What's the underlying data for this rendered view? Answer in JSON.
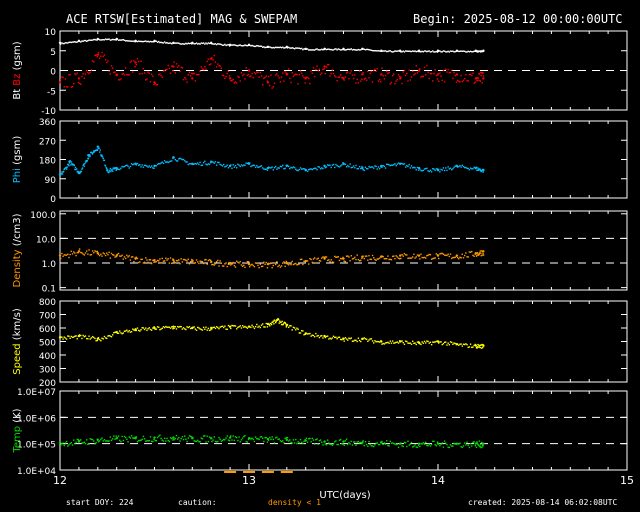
{
  "header": {
    "title": "ACE RTSW[Estimated] MAG & SWEPAM",
    "begin_label": "Begin: 2025-08-12 00:00:00UTC"
  },
  "footer": {
    "start_doy": "start DOY: 224",
    "caution_label": "caution:",
    "density_caution": "density < 1",
    "created": "created: 2025-08-14 06:02:08UTC"
  },
  "colors": {
    "background": "#000000",
    "axes": "#ffffff",
    "bt": "#ffffff",
    "bz": "#ff0000",
    "phi": "#00c0ff",
    "density": "#ff9900",
    "speed": "#ffff00",
    "temp": "#00dd00"
  },
  "chart_data": {
    "type": "scatter",
    "xlabel": "UTC(days)",
    "xlim": [
      12,
      15
    ],
    "xticks": [
      "12",
      "13",
      "14",
      "15"
    ],
    "panels": [
      {
        "id": "mag",
        "ylabel_parts": [
          "Bt",
          "Bz",
          "(gsm)"
        ],
        "ylim": [
          -10,
          10
        ],
        "yticks": [
          -10,
          -5,
          0,
          5,
          10
        ],
        "dashed_lines": [
          0
        ],
        "series": [
          {
            "name": "Bt",
            "x": [
              12.0,
              12.1,
              12.2,
              12.3,
              12.4,
              12.5,
              12.6,
              12.7,
              12.8,
              12.9,
              13.0,
              13.1,
              13.2,
              13.3,
              13.4,
              13.5,
              13.6,
              13.7,
              13.8,
              13.9,
              14.0,
              14.1,
              14.2,
              14.24
            ],
            "y": [
              7.0,
              7.5,
              8.0,
              8.0,
              7.5,
              7.5,
              7.0,
              7.0,
              7.0,
              6.5,
              6.5,
              6.0,
              6.0,
              5.5,
              5.5,
              5.5,
              5.5,
              5.0,
              5.0,
              5.0,
              5.0,
              5.0,
              5.0,
              5.0
            ]
          },
          {
            "name": "Bz",
            "x": [
              12.0,
              12.1,
              12.2,
              12.3,
              12.4,
              12.5,
              12.6,
              12.7,
              12.8,
              12.9,
              13.0,
              13.1,
              13.2,
              13.3,
              13.4,
              13.5,
              13.6,
              13.7,
              13.8,
              13.9,
              14.0,
              14.1,
              14.2,
              14.24
            ],
            "y": [
              -3,
              -2,
              4,
              -1,
              2,
              -3,
              1,
              -2,
              3,
              -2,
              0,
              -3,
              -1,
              -2,
              1,
              -2,
              -1,
              -1,
              -2,
              0,
              -1,
              -1,
              -2,
              -2
            ]
          }
        ]
      },
      {
        "id": "phi",
        "ylabel_parts": [
          "Phi",
          "(gsm)"
        ],
        "ylim": [
          0,
          360
        ],
        "yticks": [
          0,
          90,
          180,
          270,
          360
        ],
        "dashed_lines": [],
        "series": [
          {
            "name": "Phi",
            "x": [
              12.0,
              12.05,
              12.1,
              12.15,
              12.2,
              12.25,
              12.3,
              12.4,
              12.5,
              12.6,
              12.7,
              12.8,
              12.9,
              13.0,
              13.1,
              13.2,
              13.3,
              13.4,
              13.5,
              13.6,
              13.7,
              13.8,
              13.9,
              14.0,
              14.1,
              14.2,
              14.24
            ],
            "y": [
              110,
              170,
              120,
              200,
              240,
              130,
              140,
              160,
              150,
              190,
              160,
              170,
              150,
              160,
              140,
              150,
              130,
              150,
              160,
              140,
              150,
              160,
              140,
              130,
              150,
              140,
              130
            ]
          }
        ]
      },
      {
        "id": "density",
        "ylabel_parts": [
          "Density",
          "(/cm3)"
        ],
        "scale": "log",
        "ylim": [
          0.08,
          130
        ],
        "yticks": [
          0.1,
          1.0,
          10.0,
          100.0
        ],
        "ytick_labels": [
          "0.1",
          "1.0",
          "10.0",
          "100.0"
        ],
        "dashed_lines": [
          1,
          10
        ],
        "series": [
          {
            "name": "Density",
            "x": [
              12.0,
              12.1,
              12.2,
              12.3,
              12.4,
              12.5,
              12.6,
              12.7,
              12.8,
              12.9,
              13.0,
              13.1,
              13.2,
              13.3,
              13.4,
              13.5,
              13.6,
              13.7,
              13.8,
              13.9,
              14.0,
              14.1,
              14.2,
              14.24
            ],
            "y": [
              2.0,
              3.0,
              2.5,
              2.0,
              1.5,
              1.3,
              1.3,
              1.2,
              1.1,
              1.0,
              0.9,
              0.9,
              1.0,
              1.2,
              1.5,
              1.5,
              1.8,
              1.8,
              2.0,
              2.0,
              2.0,
              2.0,
              2.5,
              3.0
            ]
          }
        ]
      },
      {
        "id": "speed",
        "ylabel_parts": [
          "Speed",
          "(km/s)"
        ],
        "ylim": [
          200,
          800
        ],
        "yticks": [
          200,
          300,
          400,
          500,
          600,
          700,
          800
        ],
        "dashed_lines": [],
        "series": [
          {
            "name": "Speed",
            "x": [
              12.0,
              12.1,
              12.2,
              12.3,
              12.4,
              12.5,
              12.6,
              12.7,
              12.8,
              12.9,
              13.0,
              13.1,
              13.15,
              13.2,
              13.3,
              13.4,
              13.5,
              13.6,
              13.7,
              13.8,
              13.9,
              14.0,
              14.1,
              14.2,
              14.24
            ],
            "y": [
              530,
              540,
              520,
              570,
              590,
              600,
              610,
              600,
              600,
              610,
              610,
              630,
              660,
              620,
              560,
              540,
              520,
              520,
              500,
              500,
              490,
              500,
              480,
              470,
              470
            ]
          }
        ]
      },
      {
        "id": "temp",
        "ylabel_parts": [
          "Temp",
          "(K)"
        ],
        "scale": "log",
        "ylim": [
          10000,
          10000000
        ],
        "yticks": [
          10000,
          100000,
          1000000,
          10000000
        ],
        "ytick_labels": [
          "1.0E+04",
          "1.0E+05",
          "1.0E+06",
          "1.0E+07"
        ],
        "dashed_lines": [
          100000,
          1000000
        ],
        "series": [
          {
            "name": "Temp",
            "x": [
              12.0,
              12.1,
              12.2,
              12.3,
              12.4,
              12.5,
              12.6,
              12.7,
              12.8,
              12.9,
              13.0,
              13.1,
              13.2,
              13.3,
              13.4,
              13.5,
              13.6,
              13.7,
              13.8,
              13.9,
              14.0,
              14.1,
              14.2,
              14.24
            ],
            "y": [
              110000,
              120000,
              140000,
              160000,
              160000,
              170000,
              170000,
              160000,
              160000,
              170000,
              160000,
              150000,
              140000,
              130000,
              120000,
              120000,
              110000,
              110000,
              100000,
              100000,
              100000,
              100000,
              100000,
              100000
            ]
          }
        ]
      }
    ]
  }
}
